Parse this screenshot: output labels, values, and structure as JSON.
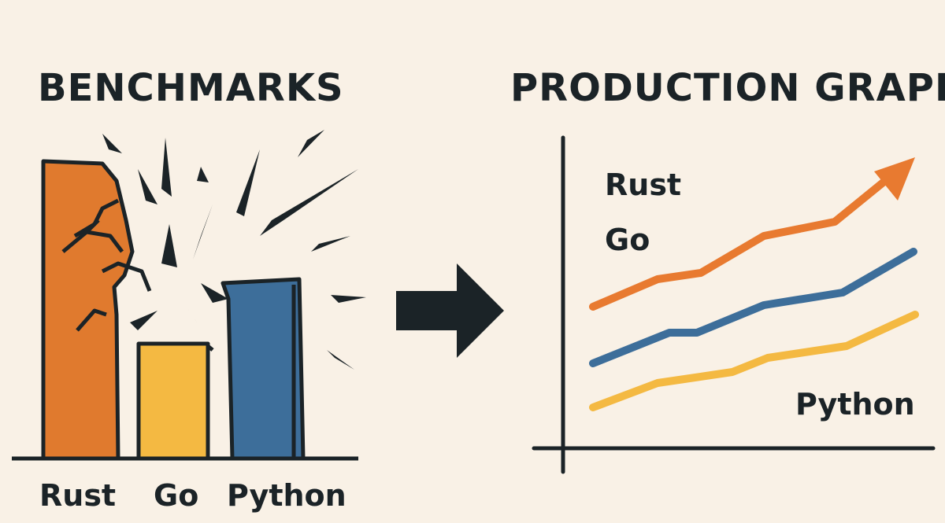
{
  "benchmarks": {
    "title": "BENCHMARKS",
    "labels": [
      "Rust",
      "Go",
      "Python"
    ]
  },
  "production": {
    "title": "PRODUCTION GRAPHS",
    "labels": [
      "Rust",
      "Go",
      "Python"
    ]
  }
}
